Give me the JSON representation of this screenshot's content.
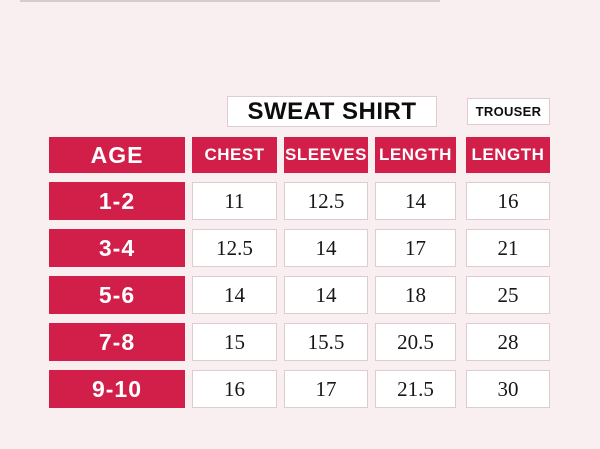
{
  "banners": {
    "sweatshirt": "SWEAT SHIRT",
    "trouser": "TROUSER"
  },
  "chart_data": {
    "type": "table",
    "group_headers": [
      "SWEAT SHIRT",
      "TROUSER"
    ],
    "columns": [
      "AGE",
      "CHEST",
      "SLEEVES",
      "LENGTH",
      "LENGTH"
    ],
    "rows": [
      [
        "1-2",
        "11",
        "12.5",
        "14",
        "16"
      ],
      [
        "3-4",
        "12.5",
        "14",
        "17",
        "21"
      ],
      [
        "5-6",
        "14",
        "14",
        "18",
        "25"
      ],
      [
        "7-8",
        "15",
        "15.5",
        "20.5",
        "28"
      ],
      [
        "9-10",
        "16",
        "17",
        "21.5",
        "30"
      ]
    ]
  },
  "colors": {
    "accent": "#d11f4a",
    "background": "#faeff0",
    "cell_border": "#ddccd0",
    "value_text": "#171717"
  }
}
